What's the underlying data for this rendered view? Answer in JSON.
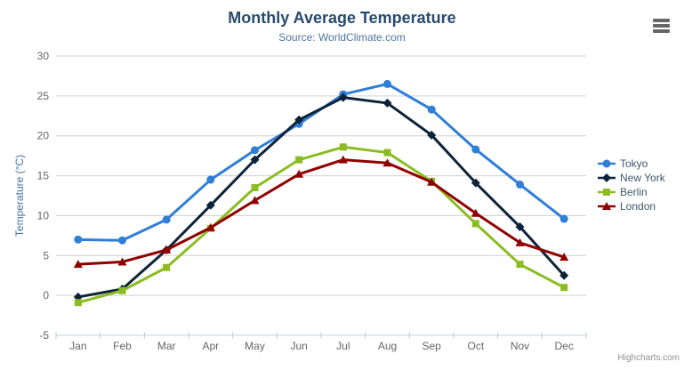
{
  "chart": {
    "title": "Monthly Average Temperature",
    "subtitle": "Source: WorldClimate.com",
    "y_axis_title": "Temperature (°C)",
    "credits": "Highcharts.com"
  },
  "chart_data": {
    "type": "line",
    "title": "Monthly Average Temperature",
    "subtitle": "Source: WorldClimate.com",
    "xlabel": "",
    "ylabel": "Temperature (°C)",
    "categories": [
      "Jan",
      "Feb",
      "Mar",
      "Apr",
      "May",
      "Jun",
      "Jul",
      "Aug",
      "Sep",
      "Oct",
      "Nov",
      "Dec"
    ],
    "series": [
      {
        "name": "Tokyo",
        "color": "#2f7ed8",
        "marker": "circle",
        "values": [
          7.0,
          6.9,
          9.5,
          14.5,
          18.2,
          21.5,
          25.2,
          26.5,
          23.3,
          18.3,
          13.9,
          9.6
        ]
      },
      {
        "name": "New York",
        "color": "#0d233a",
        "marker": "diamond",
        "values": [
          -0.2,
          0.8,
          5.7,
          11.3,
          17.0,
          22.0,
          24.8,
          24.1,
          20.1,
          14.1,
          8.6,
          2.5
        ]
      },
      {
        "name": "Berlin",
        "color": "#8bbc21",
        "marker": "square",
        "values": [
          -0.9,
          0.6,
          3.5,
          8.4,
          13.5,
          17.0,
          18.6,
          17.9,
          14.3,
          9.0,
          3.9,
          1.0
        ]
      },
      {
        "name": "London",
        "color": "#910000",
        "marker": "triangle-up",
        "values": [
          3.9,
          4.2,
          5.7,
          8.5,
          11.9,
          15.2,
          17.0,
          16.6,
          14.2,
          10.3,
          6.6,
          4.8
        ]
      }
    ],
    "ylim": [
      -5,
      30
    ],
    "y_ticks": [
      30,
      25,
      20,
      15,
      10,
      5,
      0,
      -5
    ],
    "grid": "horizontal",
    "legend_position": "right"
  },
  "colors": {
    "title": "#274b6d",
    "subtitle": "#4d759e",
    "axis_labels": "#666666",
    "y_axis_title": "#4572a7",
    "legend_text": "#3e576f",
    "gridline": "#d0d0d0",
    "axis_line": "#c0d0e0",
    "credits": "#909090",
    "menu_icon": "#666666"
  }
}
